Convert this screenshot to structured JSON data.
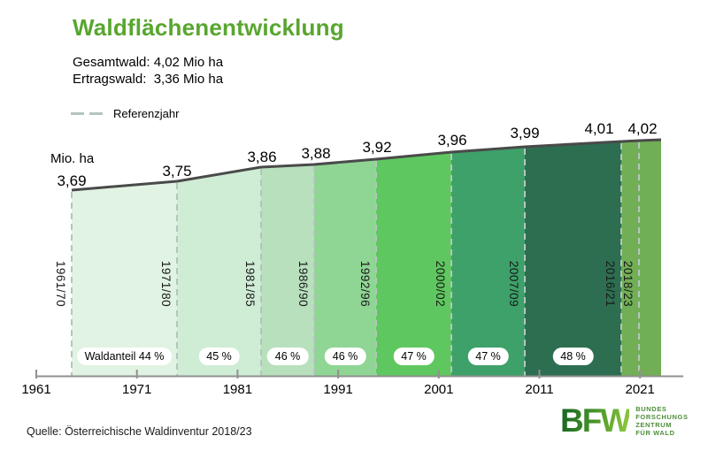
{
  "title": "Waldflächenentwicklung",
  "summary": {
    "gesamtwald": "Gesamtwald: 4,02 Mio ha",
    "ertragswald": "Ertragswald:  3,36 Mio ha"
  },
  "legend": {
    "referenzjahr": "Referenzjahr"
  },
  "unit_label": "Mio. ha",
  "source": "Quelle: Österreichische Waldinventur 2018/23",
  "logo": {
    "abbr": "BFW",
    "lines": [
      "BUNDES",
      "FORSCHUNGS",
      "ZENTRUM",
      "FÜR WALD"
    ]
  },
  "colors": {
    "title_green": "#58a62f",
    "curve": "#4a4a4a",
    "ref_line": "#b3c6bc",
    "axis": "#909090",
    "badge_bg": "#ffffff",
    "logo_text_green": "#4e8f3a",
    "bands": [
      "#e1f3e3",
      "#cfecd5",
      "#b8e0bd",
      "#8fd594",
      "#5fc75f",
      "#3da169",
      "#2d6e50",
      "#71ae55"
    ]
  },
  "chart_data": {
    "type": "area",
    "title": "Waldflächenentwicklung",
    "ylabel": "Mio. ha",
    "series_name": "Gesamtwald (Mio. ha)",
    "x_ticks": [
      "1961",
      "1971",
      "1981",
      "1991",
      "2001",
      "2011",
      "2021"
    ],
    "x_range": [
      1961,
      2021
    ],
    "legend_entries": [
      "Referenzjahr"
    ],
    "grid": false,
    "periods": [
      {
        "label": "1961/70",
        "value": "3,69",
        "value_num": 3.69,
        "forest_share": "Waldanteil 44 %"
      },
      {
        "label": "1971/80",
        "value": "3,75",
        "value_num": 3.75,
        "forest_share": "45 %"
      },
      {
        "label": "1981/85",
        "value": "3,86",
        "value_num": 3.86,
        "forest_share": "46 %"
      },
      {
        "label": "1986/90",
        "value": "3,88",
        "value_num": 3.88,
        "forest_share": "46 %"
      },
      {
        "label": "1992/96",
        "value": "3,92",
        "value_num": 3.92,
        "forest_share": "47 %"
      },
      {
        "label": "2000/02",
        "value": "3,96",
        "value_num": 3.96,
        "forest_share": "47 %"
      },
      {
        "label": "2007/09",
        "value": "3,99",
        "value_num": 3.99,
        "forest_share": "48 %"
      },
      {
        "label": "2016/21",
        "value": "4,01",
        "value_num": 4.01,
        "forest_share": null
      },
      {
        "label": "2018/23",
        "value": "4,02",
        "value_num": 4.02,
        "forest_share": null
      }
    ]
  }
}
